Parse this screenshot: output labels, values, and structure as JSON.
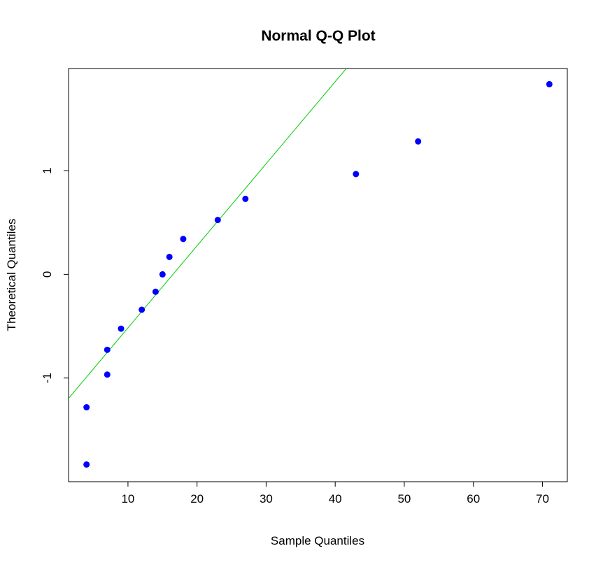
{
  "chart_data": {
    "type": "scatter",
    "title": "Normal Q-Q Plot",
    "xlabel": "Sample Quantiles",
    "ylabel": "Theoretical Quantiles",
    "xlim": [
      1.4,
      73.6
    ],
    "ylim": [
      -2.0,
      1.985
    ],
    "x_ticks": [
      10,
      20,
      30,
      40,
      50,
      60,
      70
    ],
    "y_ticks": [
      -1,
      0,
      1
    ],
    "grid": false,
    "legend": "none",
    "point_color": "#0000ff",
    "line_color": "#00cc00",
    "points": [
      {
        "x": 4,
        "y": -1.834
      },
      {
        "x": 4,
        "y": -1.282
      },
      {
        "x": 7,
        "y": -0.967
      },
      {
        "x": 7,
        "y": -0.728
      },
      {
        "x": 9,
        "y": -0.524
      },
      {
        "x": 12,
        "y": -0.341
      },
      {
        "x": 14,
        "y": -0.168
      },
      {
        "x": 15,
        "y": 0.0
      },
      {
        "x": 16,
        "y": 0.168
      },
      {
        "x": 18,
        "y": 0.341
      },
      {
        "x": 23,
        "y": 0.524
      },
      {
        "x": 27,
        "y": 0.728
      },
      {
        "x": 43,
        "y": 0.967
      },
      {
        "x": 52,
        "y": 1.282
      },
      {
        "x": 71,
        "y": 1.834
      }
    ],
    "reference_line": {
      "x1": 1.4,
      "y1": -1.197,
      "x2": 41.6,
      "y2": 1.985
    }
  }
}
